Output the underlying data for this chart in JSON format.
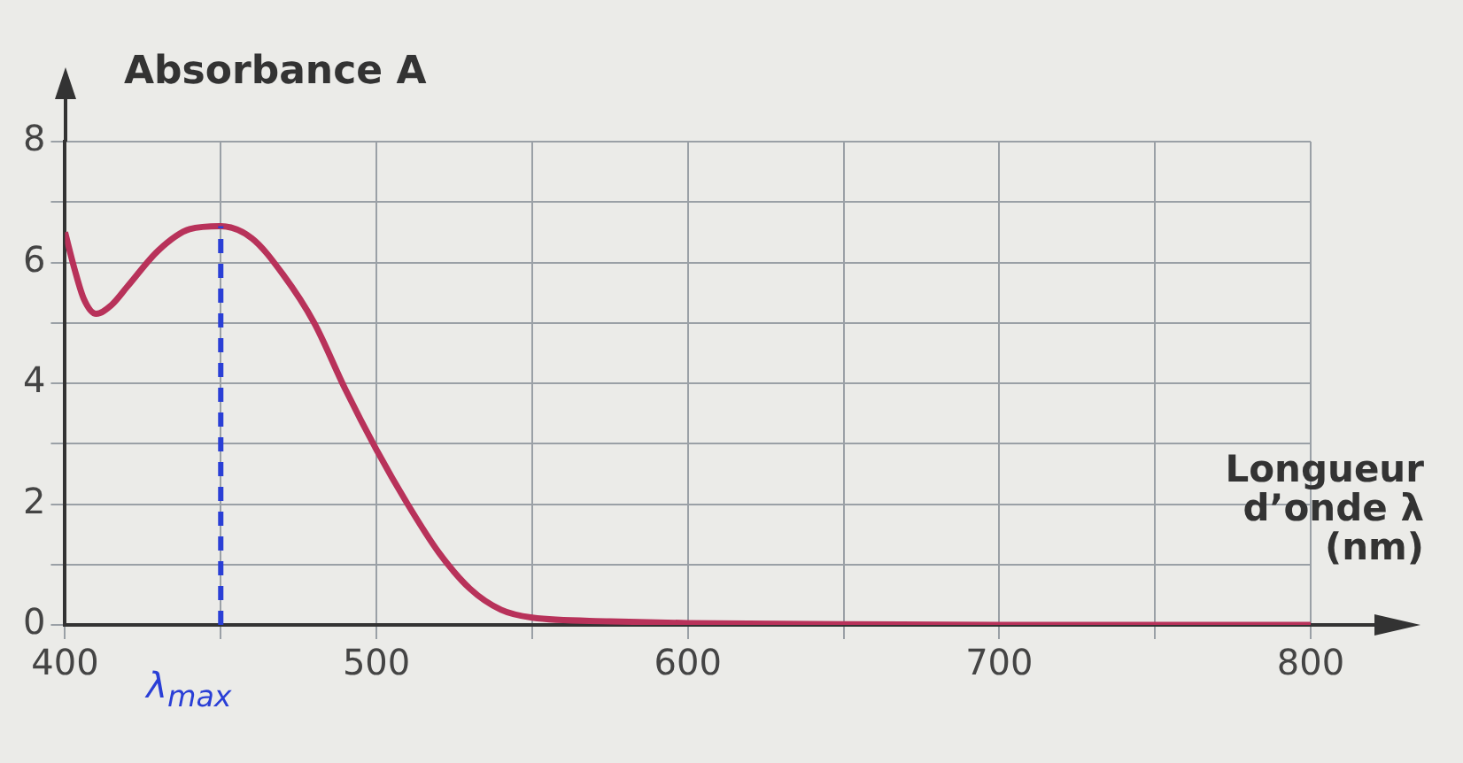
{
  "chart_data": {
    "type": "line",
    "ylabel": "Absorbance A",
    "xlabel": "Longueur d’onde λ (nm)",
    "x": [
      400,
      403,
      406,
      410,
      415,
      420,
      430,
      440,
      450,
      460,
      470,
      480,
      490,
      500,
      510,
      520,
      530,
      540,
      550,
      575,
      600,
      650,
      700,
      750,
      800
    ],
    "series": [
      {
        "color": "#b8325a",
        "values": [
          6.5,
          5.9,
          5.4,
          5.15,
          5.3,
          5.6,
          6.2,
          6.55,
          6.6,
          6.4,
          5.8,
          5.0,
          3.9,
          2.9,
          2.0,
          1.2,
          0.6,
          0.25,
          0.12,
          0.06,
          0.03,
          0.01,
          0,
          0,
          0
        ]
      }
    ],
    "xlim": [
      400,
      800
    ],
    "xticks": [
      400,
      {
        "value": 450,
        "label": null
      },
      500,
      {
        "value": 550,
        "label": null
      },
      600,
      {
        "value": 650,
        "label": null
      },
      700,
      {
        "value": 750,
        "label": null
      },
      800
    ],
    "ylim": [
      0,
      8
    ],
    "yticks": [
      0,
      {
        "value": 1,
        "label": null
      },
      2,
      {
        "value": 3,
        "label": null
      },
      4,
      {
        "value": 5,
        "label": null
      },
      6,
      {
        "value": 7,
        "label": null
      },
      8
    ],
    "ref_lines": [
      {
        "axis": "x",
        "value": 450,
        "label": "λ$_{max}$",
        "color": "#2a3fd6",
        "line_style": "dashed"
      }
    ],
    "grid": true,
    "legend": false,
    "marker": "none",
    "line_style": "solid"
  }
}
